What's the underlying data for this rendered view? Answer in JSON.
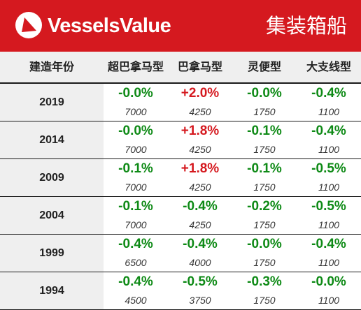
{
  "header": {
    "brand": "VesselsValue",
    "title": "集装箱船",
    "logo_icon": "triangle-arrow-logo"
  },
  "columns": [
    "建造年份",
    "超巴拿马型",
    "巴拿马型",
    "灵便型",
    "大支线型"
  ],
  "rows": [
    {
      "year": "2019",
      "cells": [
        {
          "pct": "-0.0%",
          "val": "7000",
          "color": "green"
        },
        {
          "pct": "+2.0%",
          "val": "4250",
          "color": "red"
        },
        {
          "pct": "-0.0%",
          "val": "1750",
          "color": "green"
        },
        {
          "pct": "-0.4%",
          "val": "1100",
          "color": "green"
        }
      ]
    },
    {
      "year": "2014",
      "cells": [
        {
          "pct": "-0.0%",
          "val": "7000",
          "color": "green"
        },
        {
          "pct": "+1.8%",
          "val": "4250",
          "color": "red"
        },
        {
          "pct": "-0.1%",
          "val": "1750",
          "color": "green"
        },
        {
          "pct": "-0.4%",
          "val": "1100",
          "color": "green"
        }
      ]
    },
    {
      "year": "2009",
      "cells": [
        {
          "pct": "-0.1%",
          "val": "7000",
          "color": "green"
        },
        {
          "pct": "+1.8%",
          "val": "4250",
          "color": "red"
        },
        {
          "pct": "-0.1%",
          "val": "1750",
          "color": "green"
        },
        {
          "pct": "-0.5%",
          "val": "1100",
          "color": "green"
        }
      ]
    },
    {
      "year": "2004",
      "cells": [
        {
          "pct": "-0.1%",
          "val": "7000",
          "color": "green"
        },
        {
          "pct": "-0.4%",
          "val": "4250",
          "color": "green"
        },
        {
          "pct": "-0.2%",
          "val": "1750",
          "color": "green"
        },
        {
          "pct": "-0.5%",
          "val": "1100",
          "color": "green"
        }
      ]
    },
    {
      "year": "1999",
      "cells": [
        {
          "pct": "-0.4%",
          "val": "6500",
          "color": "green"
        },
        {
          "pct": "-0.4%",
          "val": "4000",
          "color": "green"
        },
        {
          "pct": "-0.0%",
          "val": "1750",
          "color": "green"
        },
        {
          "pct": "-0.4%",
          "val": "1100",
          "color": "green"
        }
      ]
    },
    {
      "year": "1994",
      "cells": [
        {
          "pct": "-0.4%",
          "val": "4500",
          "color": "green"
        },
        {
          "pct": "-0.5%",
          "val": "3750",
          "color": "green"
        },
        {
          "pct": "-0.3%",
          "val": "1750",
          "color": "green"
        },
        {
          "pct": "-0.0%",
          "val": "1100",
          "color": "green"
        }
      ]
    }
  ]
}
